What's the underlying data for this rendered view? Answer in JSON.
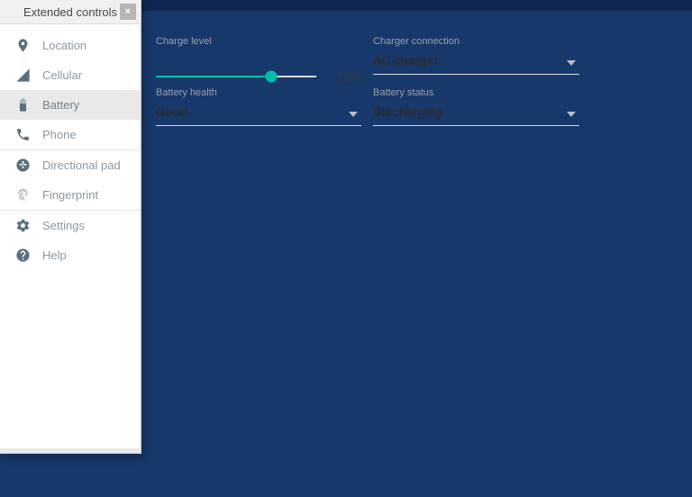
{
  "colors": {
    "accent": "#00BFA5",
    "frame_blue": "#66ADF6",
    "desktop": "#17386B"
  },
  "toolbar": {
    "minimize_label": "–",
    "close_label": "×",
    "buttons": [
      {
        "name": "power",
        "icon": "power-icon"
      },
      {
        "name": "volume-up",
        "icon": "volume-up-icon"
      },
      {
        "name": "volume-down",
        "icon": "volume-down-icon"
      },
      {
        "name": "rotate-left",
        "icon": "rotate-left-icon"
      },
      {
        "name": "rotate-right",
        "icon": "rotate-right-icon"
      },
      {
        "name": "screenshot",
        "icon": "camera-icon"
      },
      {
        "name": "zoom",
        "icon": "magnifier-plus-icon"
      },
      {
        "name": "back",
        "icon": "back-triangle-icon"
      },
      {
        "name": "home",
        "icon": "home-circle-icon"
      },
      {
        "name": "overview",
        "icon": "overview-square-icon"
      },
      {
        "name": "more",
        "icon": "ellipsis-icon"
      }
    ]
  },
  "window": {
    "title": "Extended controls",
    "close_label": "×"
  },
  "sidebar": {
    "items": [
      {
        "label": "Location",
        "icon": "location-pin-icon",
        "selected": false,
        "divider_after": false
      },
      {
        "label": "Cellular",
        "icon": "cellular-signal-icon",
        "selected": false,
        "divider_after": false
      },
      {
        "label": "Battery",
        "icon": "battery-icon",
        "selected": true,
        "divider_after": false
      },
      {
        "label": "Phone",
        "icon": "phone-icon",
        "selected": false,
        "divider_after": true
      },
      {
        "label": "Directional pad",
        "icon": "dpad-icon",
        "selected": false,
        "divider_after": false
      },
      {
        "label": "Fingerprint",
        "icon": "fingerprint-icon",
        "selected": false,
        "divider_after": true
      },
      {
        "label": "Settings",
        "icon": "gear-icon",
        "selected": false,
        "divider_after": false
      },
      {
        "label": "Help",
        "icon": "help-icon",
        "selected": false,
        "divider_after": false
      }
    ]
  },
  "battery_panel": {
    "charge_level": {
      "label": "Charge level",
      "percent": 72,
      "percent_text": "72%"
    },
    "charger_connection": {
      "label": "Charger connection",
      "value": "AC charger"
    },
    "battery_health": {
      "label": "Battery health",
      "value": "Good"
    },
    "battery_status": {
      "label": "Battery status",
      "value": "Discharging"
    }
  }
}
